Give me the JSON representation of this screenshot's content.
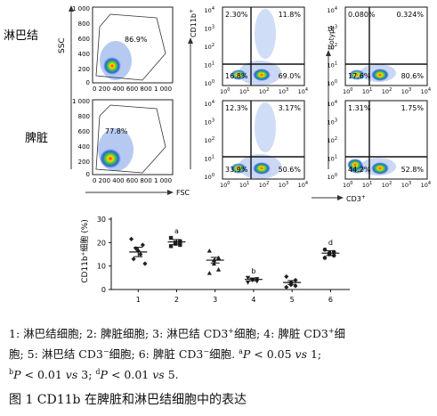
{
  "figure": {
    "row_labels": [
      "淋巴结",
      "脾脏"
    ],
    "axes": {
      "ssc": "SSC",
      "fsc": "FSC",
      "cd11b": "CD11b",
      "cd11b_sup": "+",
      "isotype": "Isotype",
      "cd3": "CD3",
      "cd3_sup": "+"
    },
    "scatter_ticks": [
      "1 000",
      "800",
      "600",
      "400",
      "200",
      "0"
    ],
    "scatter_xticks": "0 200 400 600 800 1 000",
    "gate_percent": [
      "86.9%",
      "77.8%"
    ],
    "facs_quadrants": [
      {
        "name": "ln-cd11b",
        "ul": "2.30%",
        "ur": "11.8%",
        "ll": "16.8%",
        "lr": "69.0%"
      },
      {
        "name": "ln-isotype",
        "ul": "0.080%",
        "ur": "0.324%",
        "ll": "17.6%",
        "lr": "80.6%"
      },
      {
        "name": "sp-cd11b",
        "ul": "12.3%",
        "ur": "3.17%",
        "ll": "33.9%",
        "lr": "50.6%"
      },
      {
        "name": "sp-isotype",
        "ul": "1.31%",
        "ur": "1.75%",
        "ll": "44.2%",
        "lr": "52.8%"
      }
    ]
  },
  "chart_data": {
    "type": "scatter",
    "ylabel": "CD11b⁺细胞 (%)",
    "ylim": [
      0,
      30
    ],
    "yticks": [
      "0",
      "10",
      "20",
      "30"
    ],
    "categories": [
      "1",
      "2",
      "3",
      "4",
      "5",
      "6"
    ],
    "groups": [
      {
        "x": "1",
        "marker": "diamond",
        "mean": 16.0,
        "sem": 2.0,
        "points": [
          21.5,
          19.0,
          17.5,
          16.5,
          15.0,
          13.0,
          11.0
        ]
      },
      {
        "x": "2",
        "marker": "square",
        "mean": 20.3,
        "sem": 1.0,
        "points": [
          22.0,
          20.5,
          20.0,
          19.5,
          19.0,
          18.5
        ],
        "sig": "a"
      },
      {
        "x": "3",
        "marker": "triangle",
        "mean": 12.5,
        "sem": 1.2,
        "points": [
          16.5,
          13.5,
          12.5,
          11.0,
          8.5,
          7.0
        ]
      },
      {
        "x": "4",
        "marker": "inverted-triangle",
        "mean": 4.3,
        "sem": 0.6,
        "points": [
          5.0,
          4.5,
          4.2,
          4.0,
          3.5,
          3.0
        ],
        "sig": "b"
      },
      {
        "x": "5",
        "marker": "diamond",
        "mean": 3.0,
        "sem": 0.8,
        "points": [
          5.5,
          4.0,
          3.0,
          2.0,
          1.5,
          1.0
        ]
      },
      {
        "x": "6",
        "marker": "circle",
        "mean": 15.5,
        "sem": 1.0,
        "points": [
          17.0,
          16.0,
          15.5,
          15.0,
          14.5,
          13.5
        ],
        "sig": "d"
      }
    ]
  },
  "caption": {
    "l1_a": "1: 淋巴结细胞; 2: 脾脏细胞; 3: 淋巴结 CD3",
    "l1_s1": "+",
    "l1_b": "细胞; 4: 脾脏 CD3",
    "l1_s2": "+",
    "l1_c": "细",
    "l2_a": "胞; 5: 淋巴结 CD3",
    "l2_s1": "−",
    "l2_b": "细胞; 6: 脾脏 CD3",
    "l2_s2": "−",
    "l2_c": "细胞.",
    "l2_s3": "a",
    "l2_p": "P",
    "l2_d": "< 0.05",
    "l2_vs": "vs",
    "l2_e": "1;",
    "l3_s1": "b",
    "l3_p1": "P",
    "l3_a": "< 0.01",
    "l3_vs1": "vs",
    "l3_b": "3;",
    "l3_s2": "d",
    "l3_p2": "P",
    "l3_c": "< 0.01",
    "l3_vs2": "vs",
    "l3_d": "5."
  },
  "figure_title": "图 1    CD11b 在脾脏和淋巴结细胞中的表达"
}
